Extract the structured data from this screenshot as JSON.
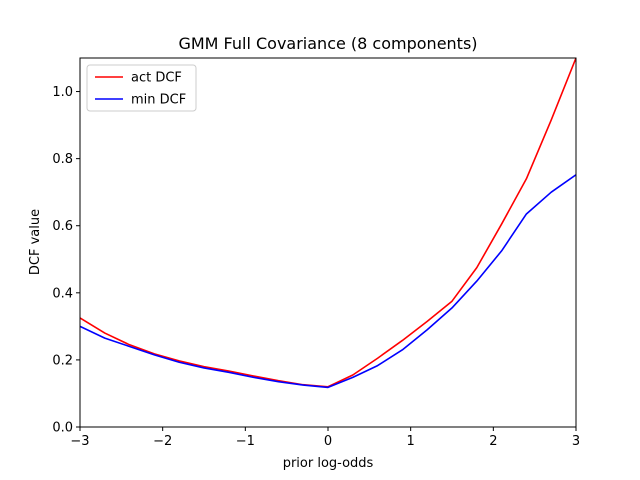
{
  "chart_data": {
    "type": "line",
    "title": "GMM Full Covariance (8 components)",
    "xlabel": "prior log-odds",
    "ylabel": "DCF value",
    "xlim": [
      -3,
      3
    ],
    "ylim": [
      0,
      1.1
    ],
    "xticks": [
      -3,
      -2,
      -1,
      0,
      1,
      2,
      3
    ],
    "xtick_labels": [
      "−3",
      "−2",
      "−1",
      "0",
      "1",
      "2",
      "3"
    ],
    "yticks": [
      0.0,
      0.2,
      0.4,
      0.6,
      0.8,
      1.0
    ],
    "ytick_labels": [
      "0.0",
      "0.2",
      "0.4",
      "0.6",
      "0.8",
      "1.0"
    ],
    "legend_position": "upper-left",
    "series": [
      {
        "name": "act DCF",
        "color": "#ff0000",
        "x": [
          -3.0,
          -2.7,
          -2.4,
          -2.1,
          -1.8,
          -1.5,
          -1.2,
          -0.9,
          -0.6,
          -0.3,
          0.0,
          0.3,
          0.6,
          0.9,
          1.2,
          1.5,
          1.8,
          2.1,
          2.4,
          2.7,
          3.0
        ],
        "values": [
          0.325,
          0.28,
          0.245,
          0.218,
          0.197,
          0.18,
          0.167,
          0.152,
          0.138,
          0.126,
          0.12,
          0.155,
          0.205,
          0.258,
          0.315,
          0.375,
          0.475,
          0.605,
          0.74,
          0.915,
          1.1
        ]
      },
      {
        "name": "min DCF",
        "color": "#0000ff",
        "x": [
          -3.0,
          -2.7,
          -2.4,
          -2.1,
          -1.8,
          -1.5,
          -1.2,
          -0.9,
          -0.6,
          -0.3,
          0.0,
          0.3,
          0.6,
          0.9,
          1.2,
          1.5,
          1.8,
          2.1,
          2.4,
          2.7,
          3.0
        ],
        "values": [
          0.3,
          0.265,
          0.24,
          0.215,
          0.193,
          0.176,
          0.163,
          0.148,
          0.135,
          0.125,
          0.118,
          0.148,
          0.183,
          0.23,
          0.29,
          0.355,
          0.435,
          0.525,
          0.635,
          0.7,
          0.752
        ]
      }
    ]
  }
}
